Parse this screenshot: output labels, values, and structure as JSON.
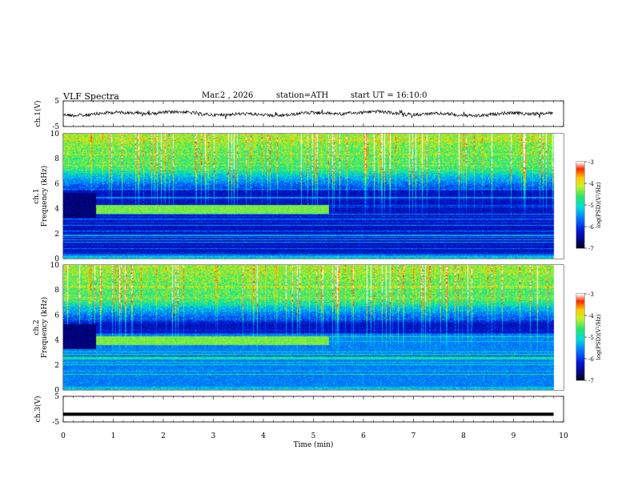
{
  "header": {
    "title": "VLF Spectra",
    "date": "Mar.2 , 2026",
    "station": "station=ATH",
    "start": "start UT = 16:10:0"
  },
  "chart_data": [
    {
      "type": "line",
      "name": "ch1-waveform",
      "ylabel": "ch.1(V)",
      "ylim": [
        -5,
        5
      ],
      "yticks": [
        "5",
        "-5"
      ],
      "xlim": [
        0,
        10
      ],
      "mean_level": 0
    },
    {
      "type": "heatmap",
      "name": "ch1-spectrogram",
      "ylabel": "Frequency (kHz)",
      "channel_label": "ch.1",
      "ylim": [
        0,
        10
      ],
      "yticks": [
        "0",
        "2",
        "4",
        "6",
        "8",
        "10"
      ],
      "xlim": [
        0,
        10
      ],
      "colorbar": {
        "label": "log(PSD)(V²/Hz)",
        "ticks": [
          "-3",
          "-4",
          "-5",
          "-6",
          "-7"
        ],
        "range": [
          -7,
          -3
        ]
      },
      "features": {
        "tone_khz": 4.0,
        "tone_end_min": 5.3,
        "gap_end_min": 0.65,
        "data_end_min": 9.8
      }
    },
    {
      "type": "heatmap",
      "name": "ch2-spectrogram",
      "ylabel": "Frequency (kHz)",
      "channel_label": "ch.2",
      "ylim": [
        0,
        10
      ],
      "yticks": [
        "0",
        "2",
        "4",
        "6",
        "8",
        "10"
      ],
      "xlim": [
        0,
        10
      ],
      "colorbar": {
        "label": "log(PSD)(V²/Hz)",
        "ticks": [
          "-3",
          "-4",
          "-5",
          "-6",
          "-7"
        ],
        "range": [
          -7,
          -3
        ]
      },
      "features": {
        "tone_khz": 4.0,
        "tone_end_min": 5.3,
        "gap_end_min": 0.65,
        "data_end_min": 9.8
      }
    },
    {
      "type": "line",
      "name": "ch3-waveform",
      "ylabel": "ch.3(V)",
      "ylim": [
        -5,
        5
      ],
      "yticks": [
        "5",
        "-5"
      ],
      "xlim": [
        0,
        10
      ],
      "mean_level": -2
    }
  ],
  "xaxis": {
    "label": "Time (min)",
    "ticks": [
      "0",
      "1",
      "2",
      "3",
      "4",
      "5",
      "6",
      "7",
      "8",
      "9",
      "10"
    ]
  }
}
